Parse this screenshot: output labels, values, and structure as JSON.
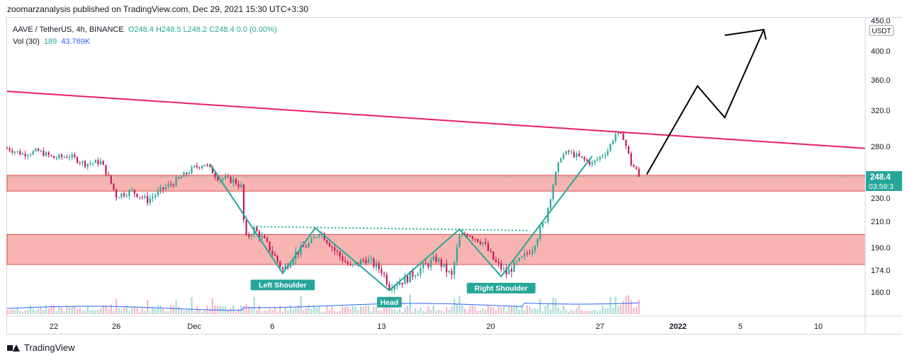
{
  "header": {
    "publisher": "zoomarzanalysis published on TradingView.com, Dec 29, 2021 15:30 UTC+3:30"
  },
  "legend": {
    "symbol": "AAVE / TetherUS, 4h, BINANCE",
    "ohlc": "O248.4  H248.5  L248.2  C248.4  0.0 (0.00%)",
    "vol_label": "Vol (30)",
    "vol_value": "189",
    "vol_ma": "43.769K"
  },
  "footer": {
    "brand": "TradingView"
  },
  "colors": {
    "up": "#26a69a",
    "down": "#c2185b",
    "trendline": "#e91e63",
    "zone_fill": "#f8b4b0",
    "zone_border": "#e0504a",
    "pattern": "#26a69a",
    "volume_ma": "#2962ff"
  },
  "chart_data": {
    "type": "candlestick",
    "symbol": "AAVE / TetherUS",
    "interval": "4h",
    "exchange": "BINANCE",
    "currency": "USDT",
    "y_ticks": [
      160.0,
      174.0,
      190.0,
      210.0,
      230.0,
      280.0,
      320.0,
      360.0,
      400.0,
      450.0
    ],
    "x_ticks": [
      "22",
      "26",
      "Dec",
      "6",
      "13",
      "20",
      "27",
      "2022",
      "5",
      "10"
    ],
    "x_tick_dates": [
      "2021-11-22",
      "2021-11-26",
      "2021-12-01",
      "2021-12-06",
      "2021-12-13",
      "2021-12-20",
      "2021-12-27",
      "2022-01-01",
      "2022-01-05",
      "2022-01-10"
    ],
    "price_path": [
      [
        "2021-11-19 00:00",
        278
      ],
      [
        "2021-11-20 00:00",
        272
      ],
      [
        "2021-11-21 00:00",
        275
      ],
      [
        "2021-11-22 00:00",
        268
      ],
      [
        "2021-11-23 00:00",
        270
      ],
      [
        "2021-11-24 00:00",
        262
      ],
      [
        "2021-11-25 00:00",
        264
      ],
      [
        "2021-11-26 00:00",
        232
      ],
      [
        "2021-11-27 00:00",
        236
      ],
      [
        "2021-11-28 00:00",
        228
      ],
      [
        "2021-11-29 00:00",
        238
      ],
      [
        "2021-11-30 00:00",
        246
      ],
      [
        "2021-12-01 00:00",
        258
      ],
      [
        "2021-12-01 16:00",
        262
      ],
      [
        "2021-12-02 12:00",
        248
      ],
      [
        "2021-12-03 12:00",
        245
      ],
      [
        "2021-12-04 00:00",
        240
      ],
      [
        "2021-12-04 06:00",
        196
      ],
      [
        "2021-12-04 20:00",
        204
      ],
      [
        "2021-12-05 12:00",
        195
      ],
      [
        "2021-12-06 06:00",
        182
      ],
      [
        "2021-12-06 16:00",
        174
      ],
      [
        "2021-12-07 12:00",
        186
      ],
      [
        "2021-12-08 12:00",
        194
      ],
      [
        "2021-12-09 00:00",
        203
      ],
      [
        "2021-12-10 00:00",
        188
      ],
      [
        "2021-12-11 00:00",
        176
      ],
      [
        "2021-12-12 00:00",
        182
      ],
      [
        "2021-12-13 00:00",
        174
      ],
      [
        "2021-12-13 12:00",
        164
      ],
      [
        "2021-12-14 12:00",
        168
      ],
      [
        "2021-12-15 12:00",
        175
      ],
      [
        "2021-12-16 12:00",
        182
      ],
      [
        "2021-12-17 12:00",
        170
      ],
      [
        "2021-12-18 00:00",
        198
      ],
      [
        "2021-12-18 12:00",
        201
      ],
      [
        "2021-12-19 12:00",
        194
      ],
      [
        "2021-12-20 06:00",
        180
      ],
      [
        "2021-12-21 00:00",
        172
      ],
      [
        "2021-12-22 00:00",
        182
      ],
      [
        "2021-12-22 16:00",
        190
      ],
      [
        "2021-12-23 12:00",
        212
      ],
      [
        "2021-12-24 00:00",
        242
      ],
      [
        "2021-12-24 12:00",
        270
      ],
      [
        "2021-12-25 00:00",
        274
      ],
      [
        "2021-12-26 00:00",
        266
      ],
      [
        "2021-12-26 12:00",
        262
      ],
      [
        "2021-12-27 12:00",
        276
      ],
      [
        "2021-12-28 00:00",
        294
      ],
      [
        "2021-12-28 12:00",
        290
      ],
      [
        "2021-12-29 00:00",
        262
      ],
      [
        "2021-12-29 15:30",
        248.4
      ]
    ],
    "current_price": 248.4,
    "countdown": "03:59:3",
    "support_zones": [
      {
        "low": 236,
        "high": 250
      },
      {
        "low": 178,
        "high": 200
      }
    ],
    "trendline": {
      "start": [
        "2021-11-19 00:00",
        345
      ],
      "end": [
        "2022-01-13 00:00",
        278
      ]
    },
    "pattern": {
      "name": "inverse head and shoulders",
      "points": [
        [
          "2021-12-02 00:00",
          262
        ],
        [
          "2021-12-06 16:00",
          172
        ],
        [
          "2021-12-08 18:00",
          205
        ],
        [
          "2021-12-13 12:00",
          161
        ],
        [
          "2021-12-18 00:00",
          204
        ],
        [
          "2021-12-20 16:00",
          170
        ],
        [
          "2021-12-26 12:00",
          270
        ]
      ],
      "neckline": {
        "start": [
          "2021-12-05 00:00",
          206
        ],
        "end": [
          "2021-12-22 12:00",
          203
        ]
      },
      "labels": [
        {
          "text": "Left Shoulder",
          "at": [
            "2021-12-06 16:00",
            172
          ]
        },
        {
          "text": "Head",
          "at": [
            "2021-12-13 12:00",
            161
          ]
        },
        {
          "text": "Right Shoulder",
          "at": [
            "2021-12-20 16:00",
            170
          ]
        }
      ]
    },
    "projection": [
      [
        "2021-12-30 00:00",
        251
      ],
      [
        "2022-01-02 06:00",
        352
      ],
      [
        "2022-01-04 00:00",
        312
      ],
      [
        "2022-01-06 12:00",
        435
      ],
      [
        "2022-01-05 18:00",
        428
      ]
    ]
  }
}
